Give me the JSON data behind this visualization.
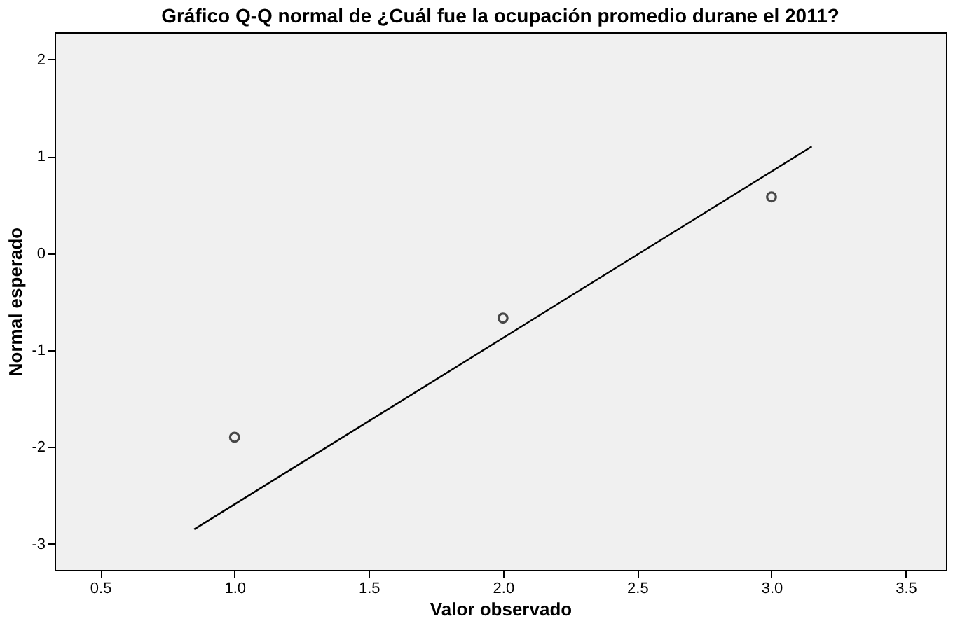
{
  "chart_data": {
    "type": "scatter",
    "title": "Gráfico Q-Q normal de ¿Cuál fue la ocupación promedio durane el 2011?",
    "xlabel": "Valor observado",
    "ylabel": "Normal esperado",
    "series": [
      {
        "color": "#000000",
        "marker": "circle",
        "x": [
          1.0,
          2.0,
          3.0
        ],
        "values": [
          -1.9,
          -0.67,
          0.58
        ]
      },
      {
        "type": "line",
        "color": "#000000",
        "x": [
          0.85,
          3.15
        ],
        "values": [
          -2.85,
          1.1
        ]
      }
    ],
    "xlim": [
      0.33,
      3.65
    ],
    "xticks": [
      {
        "value": 0.5,
        "label": "0.5"
      },
      {
        "value": 1,
        "label": "1.0"
      },
      {
        "value": 1.5,
        "label": "1.5"
      },
      {
        "value": 2,
        "label": "2.0"
      },
      {
        "value": 2.5,
        "label": "2.5"
      },
      {
        "value": 3,
        "label": "3.0"
      },
      {
        "value": 3.5,
        "label": "3.5"
      }
    ],
    "ylim": [
      -3.27,
      2.28
    ],
    "yticks": [
      -3,
      -2,
      -1,
      0,
      1,
      2
    ]
  }
}
